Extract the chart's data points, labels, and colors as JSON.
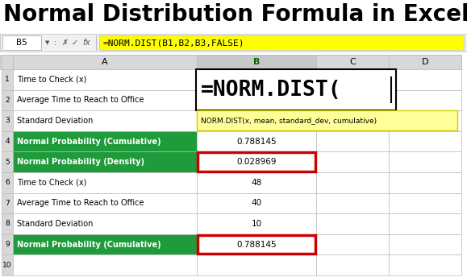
{
  "title": "Normal Distribution Formula in Excel",
  "title_fontsize": 20,
  "title_fontweight": "bold",
  "formula_bar_cell": "B5",
  "formula_bar_formula": "=NORM.DIST(B1,B2,B3,FALSE)",
  "formula_bar_bg": "#FFFF00",
  "rows": [
    {
      "num": 1,
      "a": "Time to Check (x)",
      "b": "",
      "green": false
    },
    {
      "num": 2,
      "a": "Average Time to Reach to Office",
      "b": "",
      "green": false
    },
    {
      "num": 3,
      "a": "Standard Deviation",
      "b": "",
      "green": false
    },
    {
      "num": 4,
      "a": "Normal Probability (Cumulative)",
      "b": "0.788145",
      "green": true
    },
    {
      "num": 5,
      "a": "Normal Probability (Density)",
      "b": "0.028969",
      "green": true
    },
    {
      "num": 6,
      "a": "Time to Check (x)",
      "b": "48",
      "green": false
    },
    {
      "num": 7,
      "a": "Average Time to Reach to Office",
      "b": "40",
      "green": false
    },
    {
      "num": 8,
      "a": "Standard Deviation",
      "b": "10",
      "green": false
    },
    {
      "num": 9,
      "a": "Normal Probability (Cumulative)",
      "b": "0.788145",
      "green": true
    },
    {
      "num": 10,
      "a": "",
      "b": "",
      "green": false
    }
  ],
  "green_color": "#1E9B3A",
  "green_text_color": "#FFFFFF",
  "normal_text_color": "#000000",
  "grid_color": "#BBBBBB",
  "bg_color": "#FFFFFF",
  "header_bg": "#D8D8D8",
  "b_col_selected_bg": "#C8C8C8",
  "formula_text": "=NORM.DIST(",
  "tooltip_text": "NORM.DIST(x, mean, standard_dev, cumulative)",
  "tooltip_bg": "#FFFF99",
  "formula_bar_area_bg": "#F0F0F0"
}
